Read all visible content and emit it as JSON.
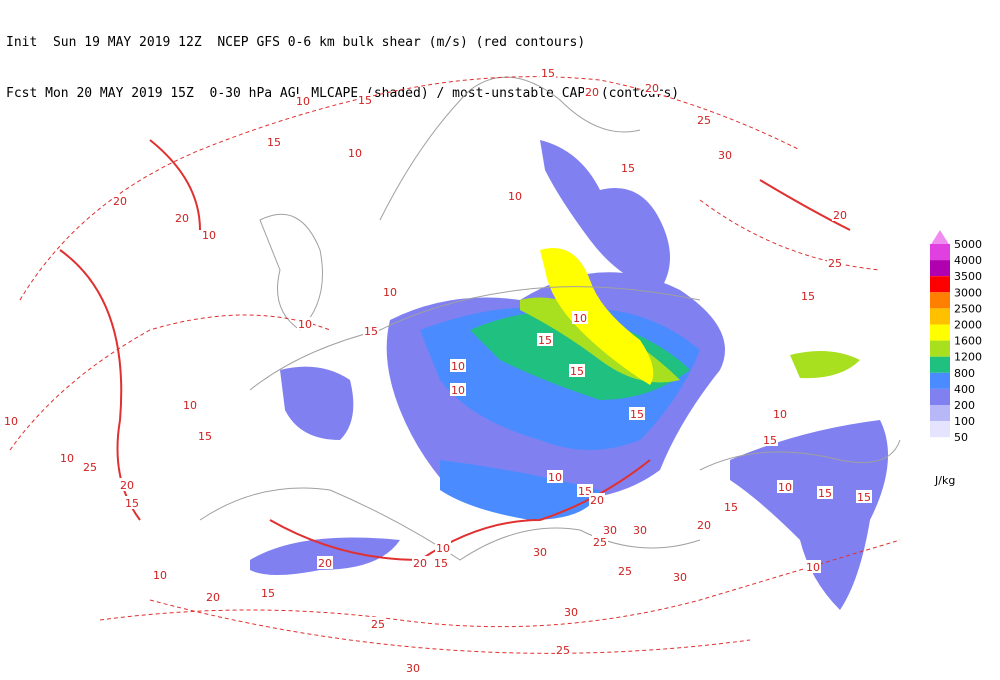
{
  "header": {
    "line1": "Init  Sun 19 MAY 2019 12Z  NCEP GFS 0-6 km bulk shear (m/s) (red contours)",
    "line2": "Fcst Mon 20 MAY 2019 15Z  0-30 hPa AGL MLCAPE (shaded) / most-unstable CAPE (contours)"
  },
  "legend": {
    "unit": "J/kg",
    "levels": [
      5000,
      4000,
      3500,
      3000,
      2500,
      2000,
      1600,
      1200,
      800,
      400,
      200,
      100,
      50
    ],
    "colors": [
      "#f08cf0",
      "#e040e0",
      "#b000b0",
      "#ff0000",
      "#ff8000",
      "#ffc000",
      "#ffff00",
      "#a8e020",
      "#20c080",
      "#4a8cff",
      "#8080f0",
      "#b8b8f8",
      "#e4e4ff"
    ]
  },
  "contour_labels": [
    "15",
    "10",
    "15",
    "20",
    "20",
    "25",
    "30",
    "15",
    "10",
    "20",
    "20",
    "10",
    "10",
    "15",
    "20",
    "25",
    "15",
    "10",
    "15",
    "10",
    "10",
    "15",
    "10",
    "15",
    "10",
    "15",
    "10",
    "10",
    "15",
    "10",
    "25",
    "20",
    "15",
    "10",
    "15",
    "20",
    "10",
    "20",
    "15",
    "20",
    "15",
    "20",
    "10",
    "30",
    "25",
    "30",
    "30",
    "20",
    "15",
    "10",
    "15",
    "15",
    "10",
    "25",
    "30",
    "30",
    "25",
    "25",
    "30",
    "15",
    "10"
  ]
}
